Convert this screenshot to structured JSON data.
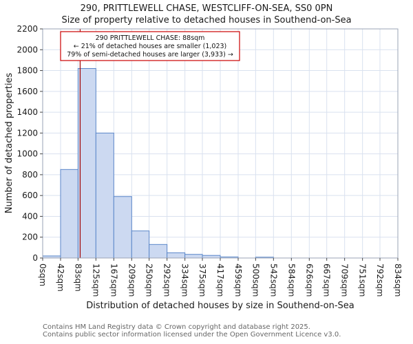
{
  "chart_data": {
    "type": "bar",
    "title_line1": "290, PRITTLEWELL CHASE, WESTCLIFF-ON-SEA, SS0 0PN",
    "title_line2": "Size of property relative to detached houses in Southend-on-Sea",
    "xlabel": "Distribution of detached houses by size in Southend-on-Sea",
    "ylabel": "Number of detached properties",
    "ylim": [
      0,
      2200
    ],
    "ytick_step": 200,
    "grid": true,
    "legend": "none",
    "x_edges_sqm": [
      0,
      42,
      83,
      125,
      167,
      209,
      250,
      292,
      334,
      375,
      417,
      459,
      500,
      542,
      584,
      626,
      667,
      709,
      751,
      792,
      834
    ],
    "xtick_labels": [
      "0sqm",
      "42sqm",
      "83sqm",
      "125sqm",
      "167sqm",
      "209sqm",
      "250sqm",
      "292sqm",
      "334sqm",
      "375sqm",
      "417sqm",
      "459sqm",
      "500sqm",
      "542sqm",
      "584sqm",
      "626sqm",
      "667sqm",
      "709sqm",
      "751sqm",
      "792sqm",
      "834sqm"
    ],
    "values": [
      20,
      850,
      1820,
      1200,
      590,
      260,
      130,
      50,
      35,
      25,
      10,
      0,
      8,
      0,
      0,
      0,
      0,
      0,
      0,
      0
    ],
    "marker": {
      "x_sqm": 88,
      "color": "#a00000"
    },
    "annotation": {
      "lines": [
        "290 PRITTLEWELL CHASE: 88sqm",
        "← 21% of detached houses are smaller (1,023)",
        "79% of semi-detached houses are larger (3,933) →"
      ],
      "border_color": "#cc0000",
      "text_color": "#111111"
    },
    "colors": {
      "bar_fill": "#ccd9f1",
      "bar_stroke": "#5b87c9",
      "grid": "#d9e1ef",
      "plot_border": "#9aa3b5",
      "tick_text": "#1a1a1a"
    }
  },
  "footer": {
    "line1": "Contains HM Land Registry data © Crown copyright and database right 2025.",
    "line2": "Contains public sector information licensed under the Open Government Licence v3.0."
  }
}
